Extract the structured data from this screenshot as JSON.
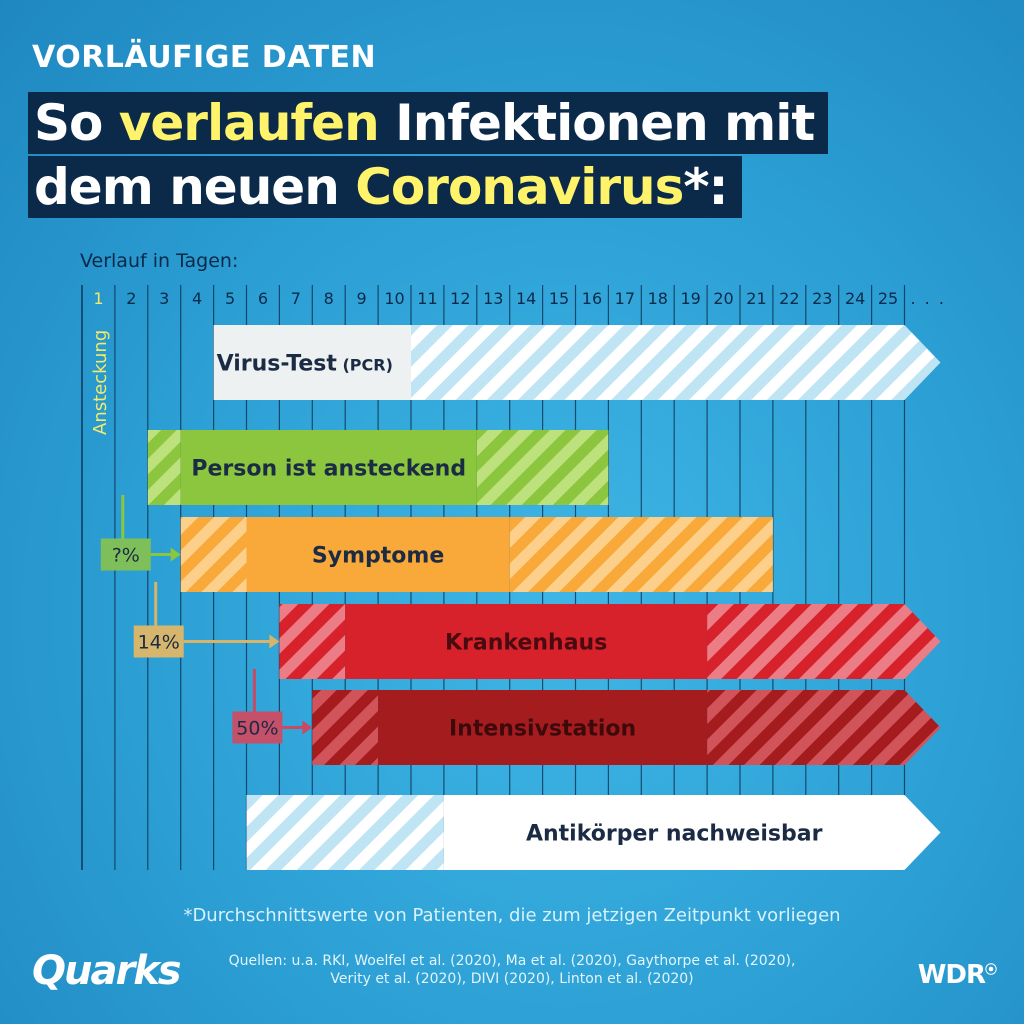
{
  "header": {
    "kicker": "VORLÄUFIGE DATEN",
    "title_line1_part1": "So ",
    "title_line1_highlight": "verlaufen",
    "title_line1_part2": " Infektionen mit",
    "title_line2_part1": "dem neuen ",
    "title_line2_highlight": "Coronavirus",
    "title_line2_part2": "*:"
  },
  "axis": {
    "label": "Verlauf in Tagen:",
    "days": [
      "1",
      "2",
      "3",
      "4",
      "5",
      "6",
      "7",
      "8",
      "9",
      "10",
      "11",
      "12",
      "13",
      "14",
      "15",
      "16",
      "17",
      "18",
      "19",
      "20",
      "21",
      "22",
      "23",
      "24",
      "25"
    ],
    "ellipsis": ". . .",
    "infection_label": "Ansteckung"
  },
  "colors": {
    "first_day": "#f3e96a",
    "virus_test": "#eef1f2",
    "virus_test_stripe": "#bfe4f4",
    "ansteckend": "#8cc63f",
    "ansteckend_stripe": "#bde17c",
    "symptome": "#f9a93a",
    "symptome_stripe": "#fcd08a",
    "krankenhaus": "#d7212b",
    "krankenhaus_stripe": "#ec7c85",
    "intensiv": "#a51c1f",
    "intensiv_stripe": "#d1545a",
    "antikoerper": "#ffffff",
    "antikoerper_stripe": "#bfe4f4"
  },
  "phases": [
    {
      "label": "Virus-Test",
      "sub_label": " (PCR)",
      "solid_start": 5,
      "solid_end": 10,
      "striped_ranges": [
        [
          11,
          26
        ]
      ],
      "arrow_tail": true
    },
    {
      "label": "Person ist ansteckend",
      "sub_label": "",
      "solid_start": 4,
      "solid_end": 12,
      "striped_ranges": [
        [
          3,
          3
        ],
        [
          13,
          16
        ]
      ],
      "arrow_tail": false
    },
    {
      "label": "Symptome",
      "sub_label": "",
      "solid_start": 6,
      "solid_end": 13,
      "striped_ranges": [
        [
          4,
          5
        ],
        [
          14,
          21
        ]
      ],
      "arrow_tail": false
    },
    {
      "label": "Krankenhaus",
      "sub_label": "",
      "solid_start": 9,
      "solid_end": 19,
      "striped_ranges": [
        [
          7,
          8
        ],
        [
          20,
          26
        ]
      ],
      "arrow_tail": true
    },
    {
      "label": "Intensivstation",
      "sub_label": "",
      "solid_start": 10,
      "solid_end": 19,
      "striped_ranges": [
        [
          8,
          9
        ],
        [
          20,
          26
        ]
      ],
      "arrow_tail": true
    },
    {
      "label": "Antikörper nachweisbar",
      "sub_label": "",
      "solid_start": 12,
      "solid_end": 26,
      "striped_ranges": [
        [
          6,
          11
        ]
      ],
      "arrow_tail": true
    }
  ],
  "transitions": [
    {
      "label": "?%",
      "from_phase": 1,
      "to_phase": 2
    },
    {
      "label": "14%",
      "from_phase": 2,
      "to_phase": 3
    },
    {
      "label": "50%",
      "from_phase": 3,
      "to_phase": 4
    }
  ],
  "footer": {
    "footnote": "*Durchschnittswerte von Patienten, die zum jetzigen Zeitpunkt vorliegen",
    "sources_line1": "Quellen: u.a. RKI, Woelfel et al. (2020), Ma et al. (2020), Gaythorpe et al. (2020),",
    "sources_line2": "Verity et al. (2020), DIVI (2020), Linton et al. (2020)",
    "logo_left": "Quarks",
    "logo_right": "WDR"
  }
}
